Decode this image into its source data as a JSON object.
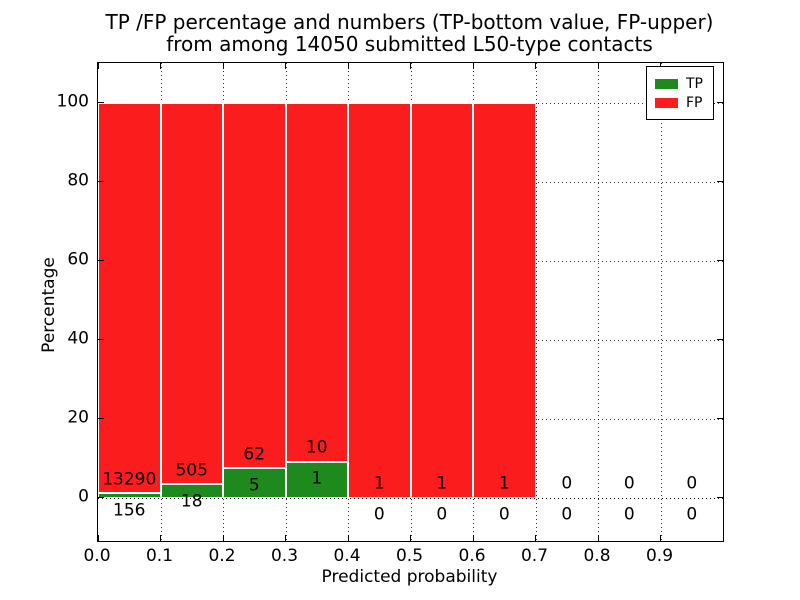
{
  "title": {
    "line1": "TP /FP percentage and numbers (TP-bottom value, FP-upper)",
    "line2": "from among 14050 submitted L50-type contacts"
  },
  "axes": {
    "x_label": "Predicted probability",
    "y_label": "Percentage",
    "x_tick_labels": [
      "0.0",
      "0.1",
      "0.2",
      "0.3",
      "0.4",
      "0.5",
      "0.6",
      "0.7",
      "0.8",
      "0.9"
    ],
    "y_tick_labels": [
      "0",
      "20",
      "40",
      "60",
      "80",
      "100"
    ],
    "y_tick_values": [
      0,
      20,
      40,
      60,
      80,
      100
    ]
  },
  "legend": {
    "position": "upper right",
    "items": [
      {
        "label": "TP",
        "color": "#1e8a1e"
      },
      {
        "label": "FP",
        "color": "#fb1d1d"
      }
    ]
  },
  "colors": {
    "tp": "#1e8a1e",
    "fp": "#fb1d1d",
    "bar_edge": "#ffffff",
    "grid": "#000000",
    "text": "#000000"
  },
  "chart_data": {
    "type": "bar",
    "stacked": true,
    "normalized": "each non-empty bin stacks TP%+FP% to 100",
    "title": "TP /FP percentage and numbers (TP-bottom value, FP-upper) from among 14050 submitted L50-type contacts",
    "xlabel": "Predicted probability",
    "ylabel": "Percentage",
    "xlim": [
      0.0,
      1.0
    ],
    "ylim": [
      -11,
      110
    ],
    "grid": "dotted",
    "legend_position": "upper right",
    "total_submitted": 14050,
    "bin_edges": [
      0.0,
      0.1,
      0.2,
      0.3,
      0.4,
      0.5,
      0.6,
      0.7,
      0.8,
      0.9,
      1.0
    ],
    "series": [
      {
        "name": "TP",
        "color": "#1e8a1e",
        "counts": [
          156,
          18,
          5,
          1,
          0,
          0,
          0,
          0,
          0,
          0
        ]
      },
      {
        "name": "FP",
        "color": "#fb1d1d",
        "counts": [
          13290,
          505,
          62,
          10,
          1,
          1,
          1,
          0,
          0,
          0
        ]
      }
    ]
  }
}
